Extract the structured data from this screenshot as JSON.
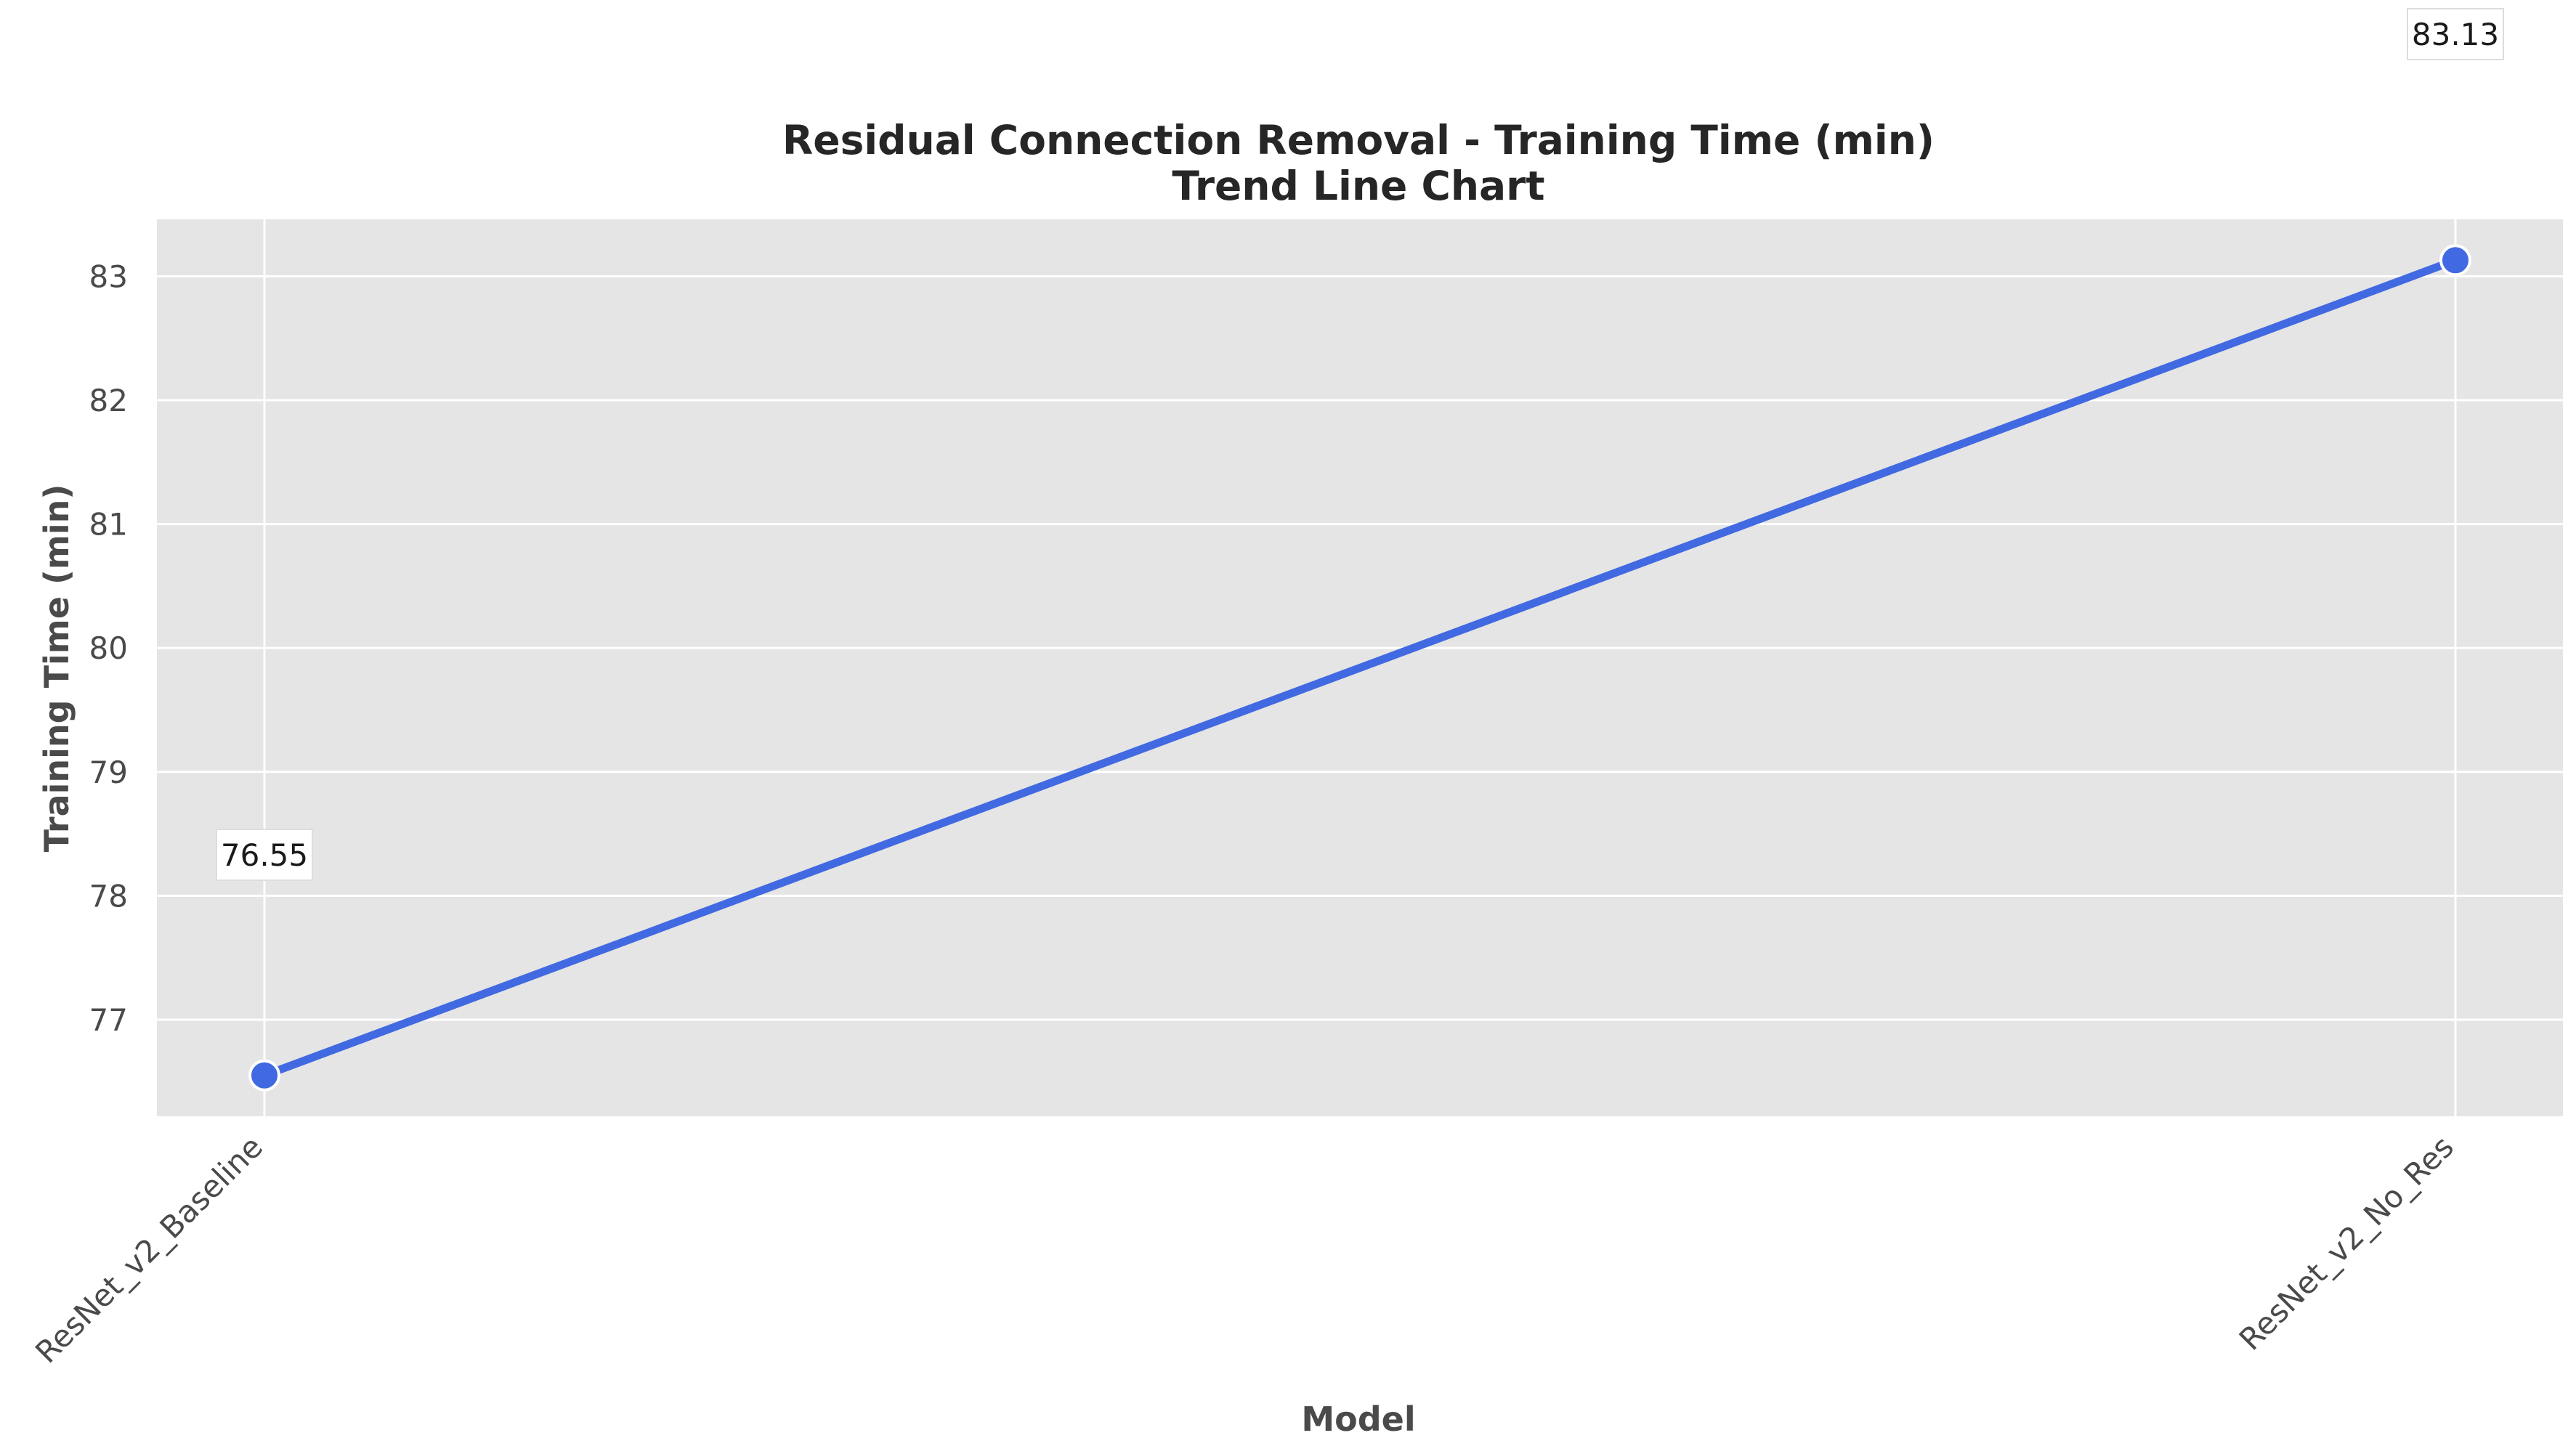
{
  "chart_data": {
    "type": "line",
    "title": "Residual Connection Removal - Training Time (min)",
    "subtitle": "Trend Line Chart",
    "xlabel": "Model",
    "ylabel": "Training Time (min)",
    "categories": [
      "ResNet_v2_Baseline",
      "ResNet_v2_No_Res"
    ],
    "values": [
      76.55,
      83.13
    ],
    "data_labels": [
      "76.55",
      "83.13"
    ],
    "ylim": [
      76.22,
      83.46
    ],
    "yticks": [
      77,
      78,
      79,
      80,
      81,
      82,
      83
    ],
    "grid": true,
    "legend": "none",
    "colors": {
      "line": "#4169e1",
      "plot_background": "#e5e5e5",
      "grid": "#ffffff"
    }
  }
}
